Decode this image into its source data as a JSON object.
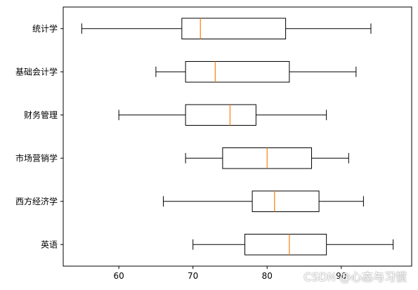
{
  "chart_data": {
    "type": "boxplot",
    "orientation": "horizontal",
    "categories": [
      "统计学",
      "基础会计学",
      "财务管理",
      "市场营销学",
      "西方经济学",
      "英语"
    ],
    "boxes": [
      {
        "category": "统计学",
        "whisker_low": 55,
        "q1": 68.5,
        "median": 71,
        "q3": 82.5,
        "whisker_high": 94
      },
      {
        "category": "基础会计学",
        "whisker_low": 65,
        "q1": 69,
        "median": 73,
        "q3": 83,
        "whisker_high": 92
      },
      {
        "category": "财务管理",
        "whisker_low": 60,
        "q1": 69,
        "median": 75,
        "q3": 78.5,
        "whisker_high": 88
      },
      {
        "category": "市场营销学",
        "whisker_low": 69,
        "q1": 74,
        "median": 80,
        "q3": 86,
        "whisker_high": 91
      },
      {
        "category": "西方经济学",
        "whisker_low": 66,
        "q1": 78,
        "median": 81,
        "q3": 87,
        "whisker_high": 93
      },
      {
        "category": "英语",
        "whisker_low": 70,
        "q1": 77,
        "median": 83,
        "q3": 88,
        "whisker_high": 97
      }
    ],
    "x_ticks": [
      60,
      70,
      80,
      90
    ],
    "xlim": [
      52.5,
      99.5
    ],
    "grid": false,
    "colors": {
      "box": "#000000",
      "median": "#ff7f0e"
    }
  },
  "watermark": "CSDN @心态与习惯"
}
